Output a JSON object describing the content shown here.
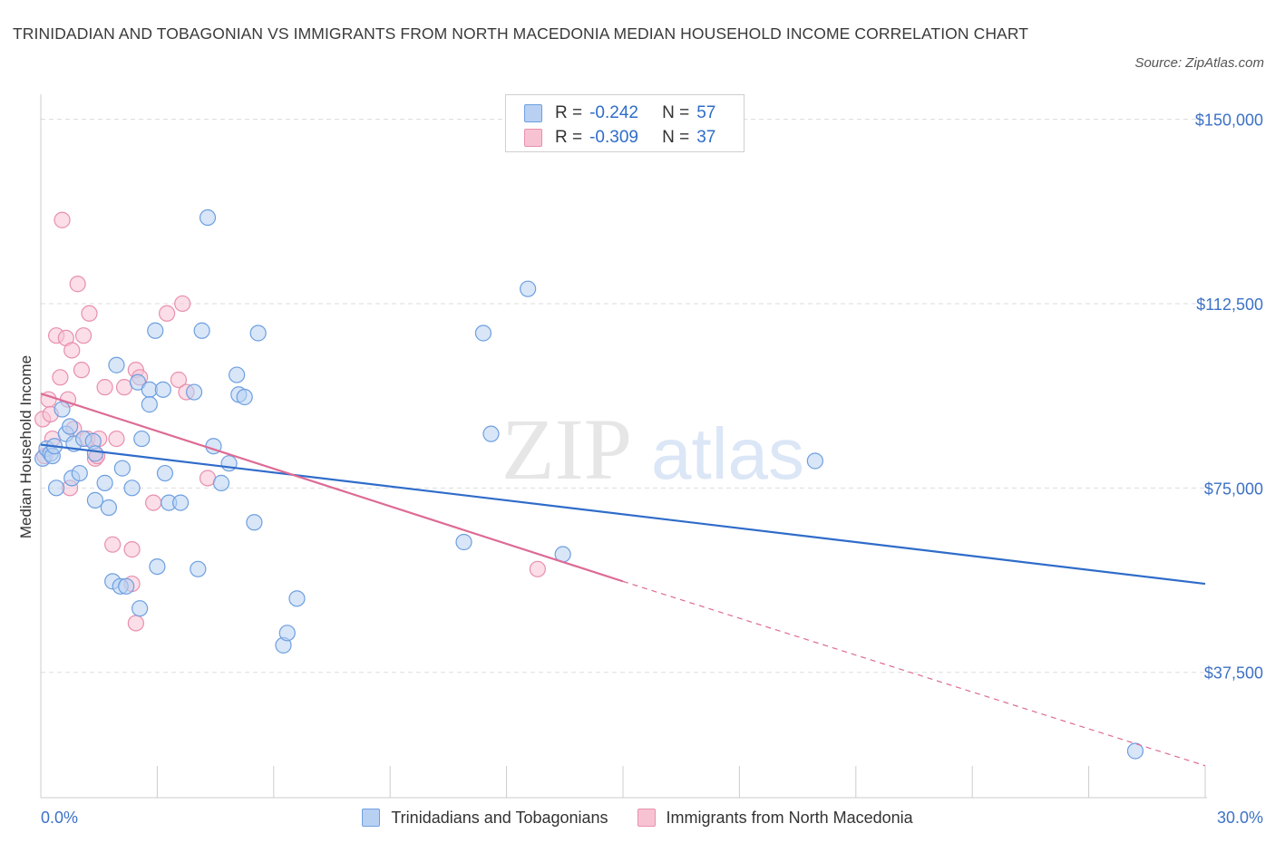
{
  "header": {
    "title": "TRINIDADIAN AND TOBAGONIAN VS IMMIGRANTS FROM NORTH MACEDONIA MEDIAN HOUSEHOLD INCOME CORRELATION CHART",
    "source": "Source: ZipAtlas.com"
  },
  "legend_stats": [
    {
      "r_label": "R =",
      "r_value": "-0.242",
      "n_label": "N =",
      "n_value": "57"
    },
    {
      "r_label": "R =",
      "r_value": "-0.309",
      "n_label": "N =",
      "n_value": "37"
    }
  ],
  "legend_items": [
    "Trinidadians and Tobagonians",
    "Immigrants from North Macedonia"
  ],
  "colors": {
    "blue_fill": "#b8d1f3",
    "blue_stroke": "#6e9fe0",
    "blue_line": "#2f6cc9",
    "pink_fill": "#f7c3d3",
    "pink_stroke": "#e88fae",
    "pink_line": "#dd6b95",
    "tick_text": "#3d72c6",
    "grid": "#dddddd"
  },
  "watermark": {
    "zip": "ZIP",
    "atlas": "atlas"
  },
  "chart_data": {
    "type": "scatter",
    "title": "TRINIDADIAN AND TOBAGONIAN VS IMMIGRANTS FROM NORTH MACEDONIA MEDIAN HOUSEHOLD INCOME CORRELATION CHART",
    "xlabel": "",
    "ylabel": "Median Household Income",
    "xlim": [
      0,
      30
    ],
    "ylim": [
      12000,
      152500
    ],
    "x_tick_labels": [
      "0.0%",
      "30.0%"
    ],
    "y_ticks": [
      37500,
      75000,
      112500,
      150000
    ],
    "y_tick_labels": [
      "$37,500",
      "$75,000",
      "$112,500",
      "$150,000"
    ],
    "grid": true,
    "legend": "top-center",
    "series": [
      {
        "name": "Trinidadians and Tobagonians",
        "points": [
          [
            0.05,
            81000
          ],
          [
            0.15,
            83000
          ],
          [
            0.25,
            82000
          ],
          [
            0.3,
            81500
          ],
          [
            0.35,
            83500
          ],
          [
            0.4,
            75000
          ],
          [
            0.55,
            91000
          ],
          [
            0.65,
            86000
          ],
          [
            0.75,
            87500
          ],
          [
            0.8,
            77000
          ],
          [
            0.85,
            84000
          ],
          [
            1.0,
            78000
          ],
          [
            1.1,
            85000
          ],
          [
            1.35,
            84500
          ],
          [
            1.4,
            82000
          ],
          [
            1.4,
            72500
          ],
          [
            1.65,
            76000
          ],
          [
            1.75,
            71000
          ],
          [
            1.85,
            56000
          ],
          [
            1.95,
            100000
          ],
          [
            2.05,
            55000
          ],
          [
            2.1,
            79000
          ],
          [
            2.2,
            55000
          ],
          [
            2.35,
            75000
          ],
          [
            2.5,
            96500
          ],
          [
            2.55,
            50500
          ],
          [
            2.6,
            85000
          ],
          [
            2.8,
            95000
          ],
          [
            2.8,
            92000
          ],
          [
            2.95,
            107000
          ],
          [
            3.0,
            59000
          ],
          [
            3.15,
            95000
          ],
          [
            3.2,
            78000
          ],
          [
            3.3,
            72000
          ],
          [
            3.6,
            72000
          ],
          [
            3.95,
            94500
          ],
          [
            4.05,
            58500
          ],
          [
            4.15,
            107000
          ],
          [
            4.3,
            130000
          ],
          [
            4.45,
            83500
          ],
          [
            4.65,
            76000
          ],
          [
            4.85,
            80000
          ],
          [
            5.05,
            98000
          ],
          [
            5.1,
            94000
          ],
          [
            5.25,
            93500
          ],
          [
            5.5,
            68000
          ],
          [
            5.6,
            106500
          ],
          [
            6.25,
            43000
          ],
          [
            6.35,
            45500
          ],
          [
            6.6,
            52500
          ],
          [
            10.9,
            64000
          ],
          [
            11.6,
            86000
          ],
          [
            11.4,
            106500
          ],
          [
            12.55,
            115500
          ],
          [
            13.45,
            61500
          ],
          [
            19.95,
            80500
          ],
          [
            28.2,
            21500
          ]
        ],
        "trendline": {
          "x": [
            0,
            30
          ],
          "y": [
            83800,
            55500
          ],
          "style": "solid"
        }
      },
      {
        "name": "Immigrants from North Macedonia",
        "points": [
          [
            0.05,
            89000
          ],
          [
            0.1,
            81500
          ],
          [
            0.2,
            93000
          ],
          [
            0.25,
            90000
          ],
          [
            0.3,
            85000
          ],
          [
            0.4,
            106000
          ],
          [
            0.5,
            97500
          ],
          [
            0.55,
            129500
          ],
          [
            0.65,
            105500
          ],
          [
            0.7,
            93000
          ],
          [
            0.75,
            75000
          ],
          [
            0.8,
            103000
          ],
          [
            0.85,
            87000
          ],
          [
            0.95,
            116500
          ],
          [
            1.05,
            99000
          ],
          [
            1.1,
            106000
          ],
          [
            1.2,
            85000
          ],
          [
            1.25,
            110500
          ],
          [
            1.4,
            81000
          ],
          [
            1.45,
            81500
          ],
          [
            1.5,
            85000
          ],
          [
            1.65,
            95500
          ],
          [
            1.85,
            63500
          ],
          [
            1.95,
            85000
          ],
          [
            2.15,
            95500
          ],
          [
            2.35,
            62500
          ],
          [
            2.35,
            55500
          ],
          [
            2.45,
            47500
          ],
          [
            2.45,
            99000
          ],
          [
            2.55,
            97500
          ],
          [
            2.9,
            72000
          ],
          [
            3.25,
            110500
          ],
          [
            3.55,
            97000
          ],
          [
            3.65,
            112500
          ],
          [
            3.75,
            94500
          ],
          [
            4.3,
            77000
          ],
          [
            12.8,
            58500
          ]
        ],
        "trendline": {
          "x": [
            0,
            15
          ],
          "y": [
            94200,
            56000
          ],
          "style": "solid",
          "extension": {
            "x": [
              15,
              30
            ],
            "y": [
              56000,
              18500
            ],
            "style": "dashed"
          }
        }
      }
    ]
  }
}
